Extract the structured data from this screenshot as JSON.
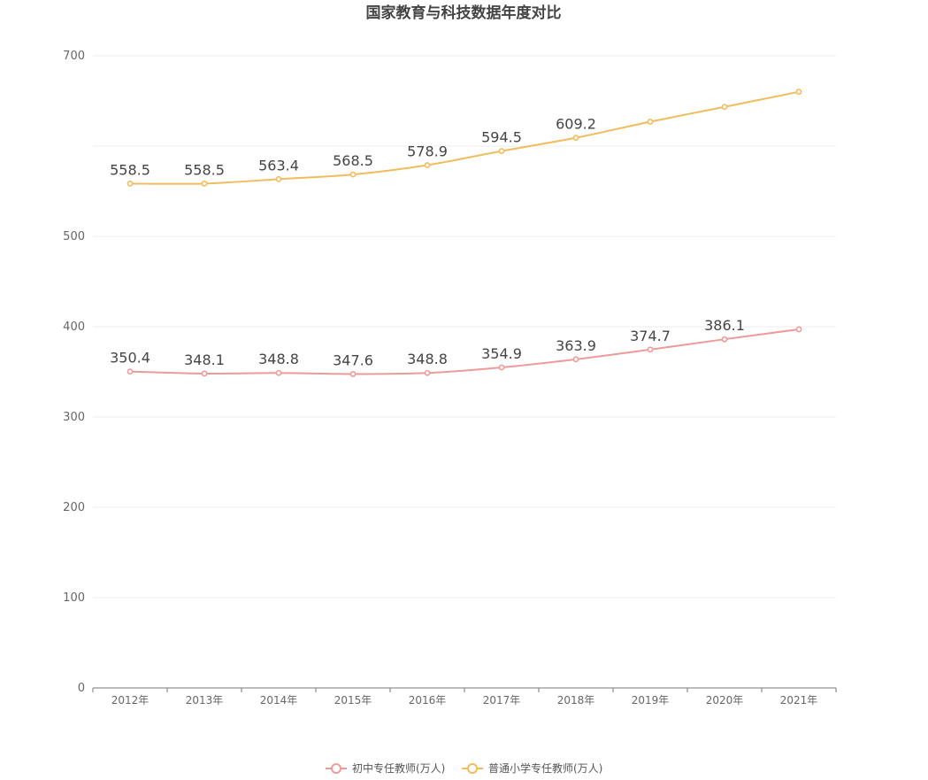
{
  "chart_data": {
    "type": "line",
    "title": "国家教育与科技数据年度对比",
    "xlabel": "",
    "ylabel": "",
    "ylim": [
      0,
      700
    ],
    "yticks": [
      0,
      100,
      200,
      300,
      400,
      500,
      700
    ],
    "categories": [
      "2012年",
      "2013年",
      "2014年",
      "2015年",
      "2016年",
      "2017年",
      "2018年",
      "2019年",
      "2020年",
      "2021年"
    ],
    "series": [
      {
        "name": "初中专任教师(万人)",
        "color": "#ef9a9a",
        "values": [
          350.4,
          348.1,
          348.8,
          347.6,
          348.8,
          354.9,
          363.9,
          374.7,
          386.1,
          397.1
        ],
        "labels": [
          "350.4",
          "348.1",
          "348.8",
          "347.6",
          "348.8",
          "354.9",
          "363.9",
          "374.7",
          "386.1",
          ""
        ]
      },
      {
        "name": "普通小学专任教师(万人)",
        "color": "#f2bb5c",
        "values": [
          558.5,
          558.5,
          563.4,
          568.5,
          578.9,
          594.5,
          609.2,
          627.0,
          643.4,
          660.1
        ],
        "labels": [
          "558.5",
          "558.5",
          "563.4",
          "568.5",
          "578.9",
          "594.5",
          "609.2",
          "",
          "",
          ""
        ]
      }
    ],
    "grid": true,
    "legend_position": "bottom-center"
  }
}
